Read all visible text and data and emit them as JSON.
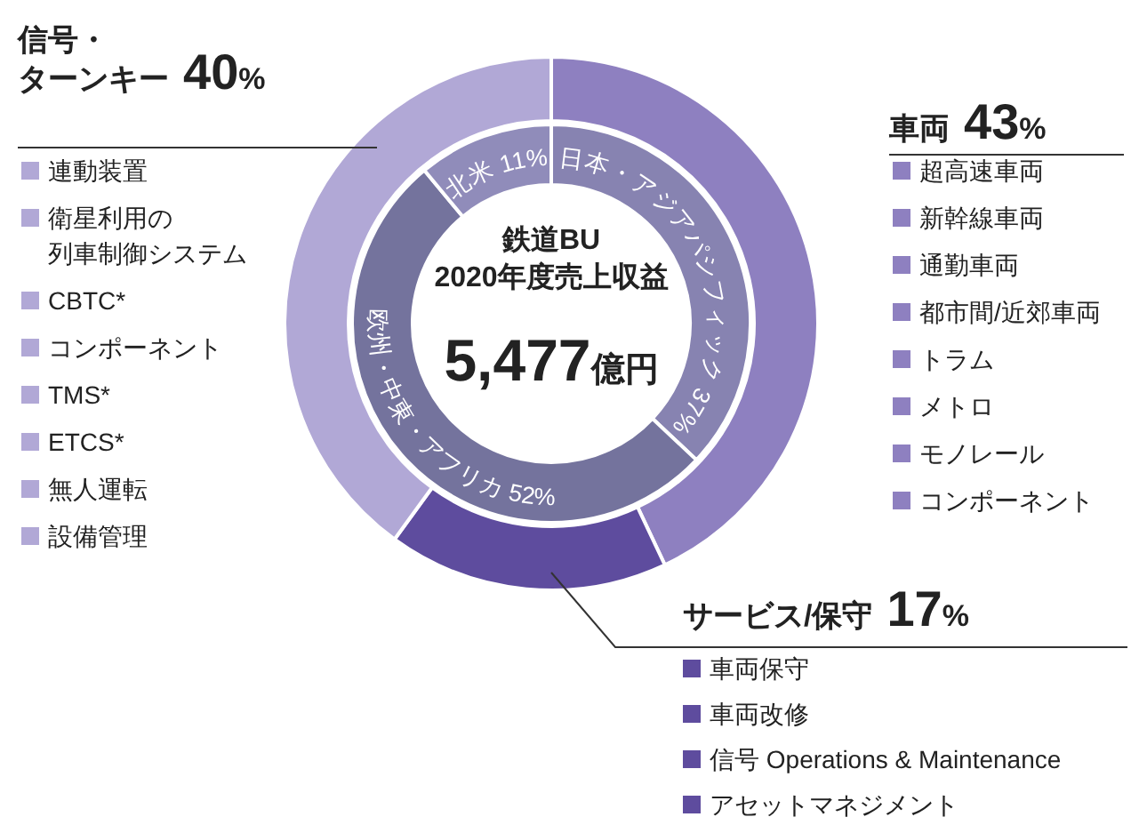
{
  "chart_data": [
    {
      "type": "donut",
      "title": "鉄道BU\n2020年度売上収益",
      "subtitle": "5,477億円",
      "categories": [
        "車両",
        "サービス/保守",
        "信号・ターンキー"
      ],
      "values": [
        43,
        17,
        40
      ],
      "value_labels": [
        "43%",
        "17%",
        "40%"
      ],
      "colors": [
        "#8e80c0",
        "#5e4c9e",
        "#b1a8d6"
      ],
      "annotations": [
        {
          "text": "超高速車両",
          "x": "車両"
        },
        {
          "text": "新幹線車両",
          "x": "車両"
        },
        {
          "text": "通勤車両",
          "x": "車両"
        },
        {
          "text": "都市間/近郊車両",
          "x": "車両"
        },
        {
          "text": "トラム",
          "x": "車両"
        },
        {
          "text": "メトロ",
          "x": "車両"
        },
        {
          "text": "モノレール",
          "x": "車両"
        },
        {
          "text": "コンポーネント",
          "x": "車両"
        },
        {
          "text": "車両保守",
          "x": "サービス/保守"
        },
        {
          "text": "車両改修",
          "x": "サービス/保守"
        },
        {
          "text": "信号 Operations & Maintenance",
          "x": "サービス/保守"
        },
        {
          "text": "アセットマネジメント",
          "x": "サービス/保守"
        },
        {
          "text": "連動装置",
          "x": "信号・ターンキー"
        },
        {
          "text": "衛星利用の列車制御システム",
          "x": "信号・ターンキー"
        },
        {
          "text": "CBTC*",
          "x": "信号・ターンキー"
        },
        {
          "text": "コンポーネント",
          "x": "信号・ターンキー"
        },
        {
          "text": "TMS*",
          "x": "信号・ターンキー"
        },
        {
          "text": "ETCS*",
          "x": "信号・ターンキー"
        },
        {
          "text": "無人運転",
          "x": "信号・ターンキー"
        },
        {
          "text": "設備管理",
          "x": "信号・ターンキー"
        }
      ]
    },
    {
      "type": "donut",
      "categories": [
        "日本・アジアパシフィック",
        "欧州・中東・アフリカ",
        "北米"
      ],
      "values": [
        37,
        52,
        11
      ],
      "value_labels": [
        "37%",
        "52%",
        "11%"
      ],
      "colors": [
        "#8783b1",
        "#74739d",
        "#908cba"
      ]
    }
  ]
}
